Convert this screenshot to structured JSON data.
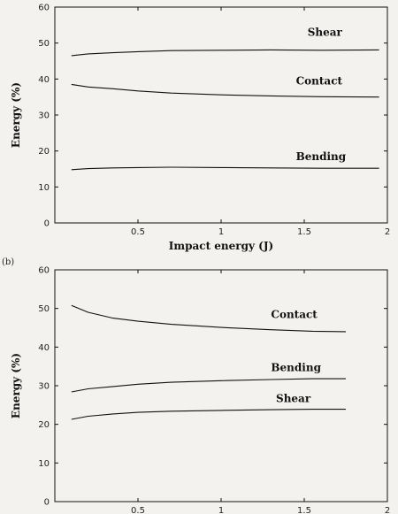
{
  "chart_data": [
    {
      "type": "line",
      "panel_label": "",
      "xlabel": "Impact energy (J)",
      "ylabel": "Energy (%)",
      "xlim": [
        0,
        2
      ],
      "ylim": [
        0,
        60
      ],
      "xticks": [
        "0.5",
        "1",
        "1.5",
        "2"
      ],
      "yticks": [
        "0",
        "10",
        "20",
        "30",
        "40",
        "50",
        "60"
      ],
      "series": [
        {
          "name": "Shear",
          "x": [
            0.1,
            0.2,
            0.35,
            0.5,
            0.7,
            1.0,
            1.3,
            1.6,
            1.95
          ],
          "y": [
            46.5,
            47.0,
            47.3,
            47.6,
            47.9,
            48.0,
            48.1,
            48.0,
            48.1
          ]
        },
        {
          "name": "Contact",
          "x": [
            0.1,
            0.2,
            0.35,
            0.5,
            0.7,
            1.0,
            1.3,
            1.6,
            1.95
          ],
          "y": [
            38.5,
            37.8,
            37.3,
            36.7,
            36.1,
            35.6,
            35.3,
            35.1,
            35.0
          ]
        },
        {
          "name": "Bending",
          "x": [
            0.1,
            0.2,
            0.35,
            0.5,
            0.7,
            1.0,
            1.3,
            1.6,
            1.95
          ],
          "y": [
            14.8,
            15.1,
            15.3,
            15.4,
            15.5,
            15.4,
            15.3,
            15.2,
            15.2
          ]
        }
      ],
      "label_positions": {
        "Shear": {
          "x": 1.52,
          "y": 52
        },
        "Contact": {
          "x": 1.45,
          "y": 38.5
        },
        "Bending": {
          "x": 1.45,
          "y": 17.5
        }
      }
    },
    {
      "type": "line",
      "panel_label": "(b)",
      "xlabel": "",
      "ylabel": "Energy (%)",
      "xlim": [
        0,
        2
      ],
      "ylim": [
        0,
        60
      ],
      "xticks": [
        "0.5",
        "1",
        "1.5",
        "2"
      ],
      "yticks": [
        "0",
        "10",
        "20",
        "30",
        "40",
        "50",
        "60"
      ],
      "series": [
        {
          "name": "Contact",
          "x": [
            0.1,
            0.2,
            0.35,
            0.5,
            0.7,
            1.0,
            1.3,
            1.55,
            1.75
          ],
          "y": [
            50.8,
            49.0,
            47.5,
            46.7,
            45.9,
            45.1,
            44.5,
            44.1,
            44.0
          ]
        },
        {
          "name": "Bending",
          "x": [
            0.1,
            0.2,
            0.35,
            0.5,
            0.7,
            1.0,
            1.3,
            1.55,
            1.75
          ],
          "y": [
            28.4,
            29.2,
            29.8,
            30.4,
            30.9,
            31.3,
            31.6,
            31.8,
            31.8
          ]
        },
        {
          "name": "Shear",
          "x": [
            0.1,
            0.2,
            0.35,
            0.5,
            0.7,
            1.0,
            1.3,
            1.55,
            1.75
          ],
          "y": [
            21.3,
            22.1,
            22.7,
            23.1,
            23.4,
            23.6,
            23.8,
            23.9,
            23.9
          ]
        }
      ],
      "label_positions": {
        "Contact": {
          "x": 1.3,
          "y": 47.5
        },
        "Bending": {
          "x": 1.3,
          "y": 33.8
        },
        "Shear": {
          "x": 1.33,
          "y": 25.8
        }
      }
    }
  ]
}
